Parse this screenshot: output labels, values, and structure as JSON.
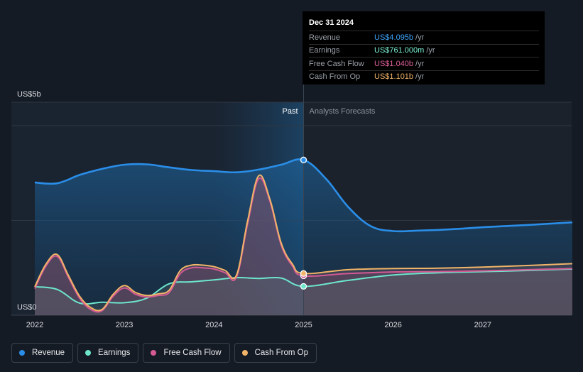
{
  "tooltip": {
    "date": "Dec 31 2024",
    "rows": [
      {
        "label": "Revenue",
        "value": "US$4.095b",
        "unit": "/yr",
        "color": "#3ea6ff"
      },
      {
        "label": "Earnings",
        "value": "US$761.000m",
        "unit": "/yr",
        "color": "#7ef3d6"
      },
      {
        "label": "Free Cash Flow",
        "value": "US$1.040b",
        "unit": "/yr",
        "color": "#e0609a"
      },
      {
        "label": "Cash From Op",
        "value": "US$1.101b",
        "unit": "/yr",
        "color": "#f2b468"
      }
    ]
  },
  "legend": [
    {
      "label": "Revenue",
      "color": "#2a8ee8"
    },
    {
      "label": "Earnings",
      "color": "#6de6cc"
    },
    {
      "label": "Free Cash Flow",
      "color": "#d45a94"
    },
    {
      "label": "Cash From Op",
      "color": "#f2b468"
    }
  ],
  "chart_data": {
    "type": "line",
    "y_unit_labels": [
      "US$5b",
      "US$0"
    ],
    "ylim": [
      0,
      5
    ],
    "xlim": [
      2022,
      2028
    ],
    "x_ticks": [
      "2022",
      "2023",
      "2024",
      "2025",
      "2026",
      "2027"
    ],
    "past_label": "Past",
    "forecast_label": "Analysts Forecasts",
    "divider_x": 2025.0,
    "grid": true,
    "series": [
      {
        "name": "Revenue",
        "color": "#2a8ee8",
        "x": [
          2022.0,
          2022.25,
          2022.5,
          2022.75,
          2023.0,
          2023.25,
          2023.5,
          2023.75,
          2024.0,
          2024.25,
          2024.5,
          2024.75,
          2025.0,
          2025.25,
          2025.5,
          2025.75,
          2026.0,
          2026.25,
          2026.5,
          2026.75,
          2027.0,
          2027.5,
          2028.0
        ],
        "y": [
          3.5,
          3.48,
          3.7,
          3.86,
          3.97,
          3.98,
          3.9,
          3.83,
          3.8,
          3.77,
          3.84,
          3.97,
          4.095,
          3.6,
          2.85,
          2.35,
          2.22,
          2.23,
          2.25,
          2.28,
          2.32,
          2.38,
          2.45
        ]
      },
      {
        "name": "Earnings",
        "color": "#6de6cc",
        "x": [
          2022.0,
          2022.25,
          2022.5,
          2022.75,
          2023.0,
          2023.25,
          2023.5,
          2023.75,
          2024.0,
          2024.25,
          2024.5,
          2024.75,
          2025.0,
          2025.5,
          2026.0,
          2026.5,
          2027.0,
          2027.5,
          2028.0
        ],
        "y": [
          0.75,
          0.68,
          0.32,
          0.34,
          0.33,
          0.45,
          0.83,
          0.88,
          0.93,
          0.99,
          0.97,
          0.98,
          0.761,
          0.92,
          1.06,
          1.12,
          1.15,
          1.18,
          1.22
        ]
      },
      {
        "name": "Free Cash Flow",
        "color": "#d45a94",
        "x": [
          2022.0,
          2022.125,
          2022.25,
          2022.375,
          2022.5,
          2022.625,
          2022.75,
          2022.875,
          2023.0,
          2023.125,
          2023.25,
          2023.375,
          2023.5,
          2023.625,
          2023.75,
          2023.875,
          2024.0,
          2024.125,
          2024.25,
          2024.375,
          2024.5,
          2024.625,
          2024.75,
          2024.875,
          2025.0,
          2025.5,
          2026.0,
          2026.5,
          2027.0,
          2027.5,
          2028.0
        ],
        "y": [
          0.7,
          1.3,
          1.55,
          1.0,
          0.45,
          0.15,
          0.12,
          0.5,
          0.72,
          0.55,
          0.48,
          0.52,
          0.6,
          1.1,
          1.25,
          1.25,
          1.22,
          1.12,
          1.0,
          2.4,
          3.6,
          3.0,
          1.85,
          1.3,
          1.04,
          1.1,
          1.14,
          1.15,
          1.17,
          1.2,
          1.23
        ]
      },
      {
        "name": "Cash From Op",
        "color": "#f2b468",
        "x": [
          2022.0,
          2022.125,
          2022.25,
          2022.375,
          2022.5,
          2022.625,
          2022.75,
          2022.875,
          2023.0,
          2023.125,
          2023.25,
          2023.375,
          2023.5,
          2023.625,
          2023.75,
          2023.875,
          2024.0,
          2024.125,
          2024.25,
          2024.375,
          2024.5,
          2024.625,
          2024.75,
          2024.875,
          2025.0,
          2025.5,
          2026.0,
          2026.5,
          2027.0,
          2027.5,
          2028.0
        ],
        "y": [
          0.75,
          1.35,
          1.6,
          1.05,
          0.5,
          0.2,
          0.15,
          0.55,
          0.78,
          0.6,
          0.52,
          0.56,
          0.66,
          1.18,
          1.32,
          1.32,
          1.28,
          1.18,
          1.05,
          2.48,
          3.68,
          3.05,
          1.9,
          1.35,
          1.101,
          1.2,
          1.23,
          1.24,
          1.27,
          1.31,
          1.36
        ]
      }
    ],
    "highlight_x": 2025.0
  }
}
